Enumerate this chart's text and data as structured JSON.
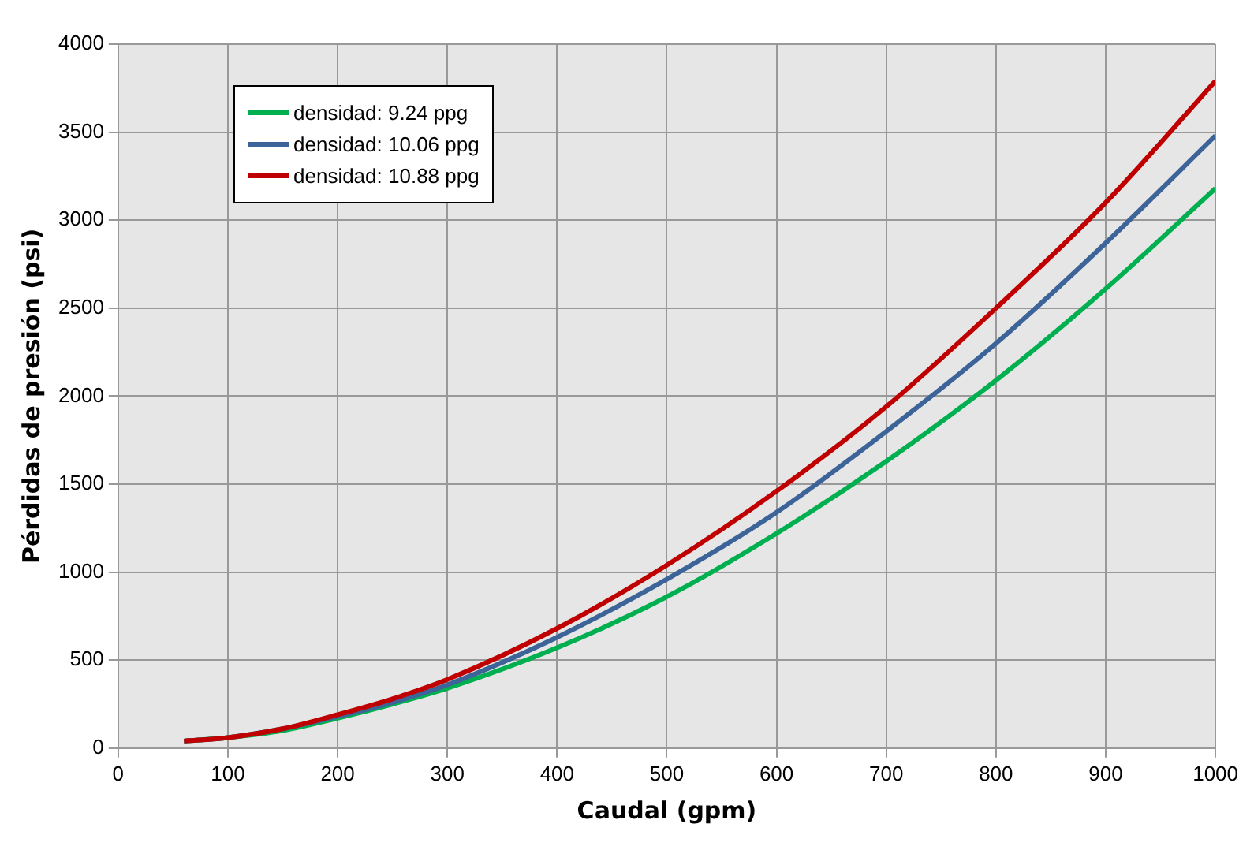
{
  "chart_data": {
    "type": "line",
    "xlabel": "Caudal (gpm)",
    "ylabel": "Pérdidas de presión (psi)",
    "x": [
      60,
      100,
      150,
      200,
      250,
      300,
      400,
      500,
      600,
      700,
      800,
      900,
      1000
    ],
    "series": [
      {
        "name": "densidad: 9.24 ppg",
        "color": "#00b050",
        "values": [
          40,
          60,
          100,
          170,
          250,
          340,
          570,
          860,
          1220,
          1630,
          2090,
          2610,
          3180
        ]
      },
      {
        "name": "densidad: 10.06 ppg",
        "color": "#3c6499",
        "values": [
          40,
          60,
          110,
          180,
          260,
          360,
          630,
          960,
          1340,
          1800,
          2300,
          2870,
          3480
        ]
      },
      {
        "name": "densidad: 10.88 ppg",
        "color": "#c00000",
        "values": [
          40,
          60,
          110,
          190,
          280,
          390,
          680,
          1040,
          1460,
          1940,
          2500,
          3100,
          3790
        ]
      }
    ],
    "xlim": [
      0,
      1000
    ],
    "xticks": [
      0,
      100,
      200,
      300,
      400,
      500,
      600,
      700,
      800,
      900,
      1000
    ],
    "ylim": [
      0,
      4000
    ],
    "yticks": [
      0,
      500,
      1000,
      1500,
      2000,
      2500,
      3000,
      3500,
      4000
    ],
    "grid": true,
    "legend": "top left",
    "marker": "none",
    "line_style": "solid"
  }
}
